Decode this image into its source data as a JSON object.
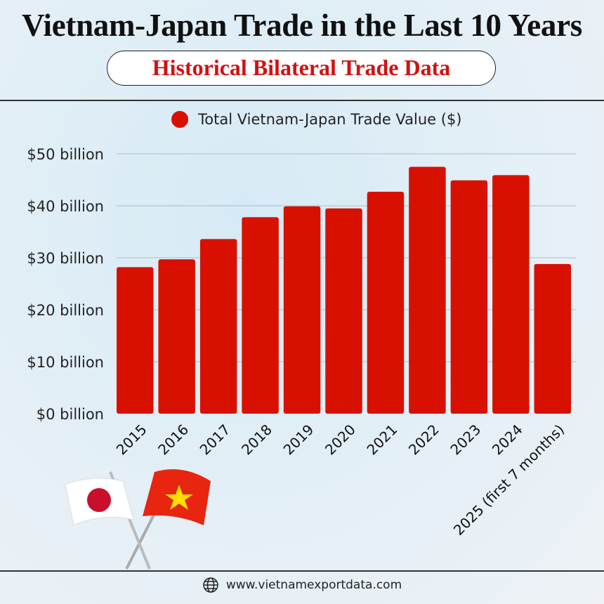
{
  "header": {
    "title": "Vietnam-Japan Trade in the Last 10 Years",
    "subtitle": "Historical Bilateral Trade Data"
  },
  "footer": {
    "url": "www.vietnamexportdata.com",
    "icon": "globe-icon"
  },
  "colors": {
    "bar": "#d81000",
    "subtitle": "#d01212"
  },
  "chart_data": {
    "type": "bar",
    "title": "Vietnam-Japan Trade in the Last 10 Years",
    "legend": "Total Vietnam-Japan Trade Value ($)",
    "legend_position": "top",
    "categories": [
      "2015",
      "2016",
      "2017",
      "2018",
      "2019",
      "2020",
      "2021",
      "2022",
      "2023",
      "2024",
      "2025 (first 7 months)"
    ],
    "values": [
      28.2,
      29.7,
      33.6,
      37.8,
      39.9,
      39.5,
      42.7,
      47.5,
      44.9,
      45.9,
      28.8
    ],
    "unit": "billion USD",
    "ylim": [
      0,
      50
    ],
    "yticks": [
      0,
      10,
      20,
      30,
      40,
      50
    ],
    "ytick_labels": [
      "$0 billion",
      "$10 billion",
      "$20 billion",
      "$30 billion",
      "$40 billion",
      "$50 billion"
    ],
    "grid": true
  }
}
